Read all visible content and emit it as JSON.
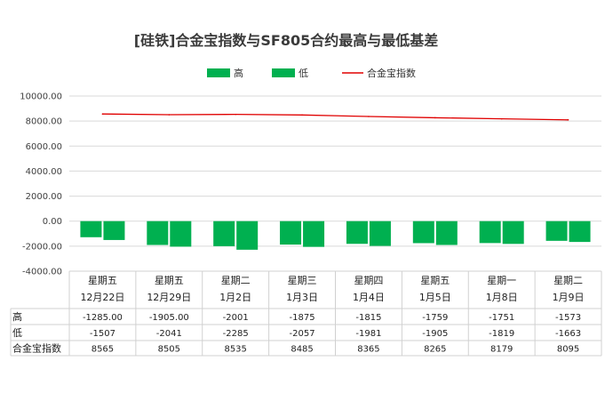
{
  "chart_data": {
    "type": "bar",
    "title": "[硅铁]合金宝指数与SF805合约最高与最低基差",
    "categories": [
      [
        "星期五",
        "12月22日"
      ],
      [
        "星期五",
        "12月29日"
      ],
      [
        "星期二",
        "1月2日"
      ],
      [
        "星期三",
        "1月3日"
      ],
      [
        "星期四",
        "1月4日"
      ],
      [
        "星期五",
        "1月5日"
      ],
      [
        "星期一",
        "1月8日"
      ],
      [
        "星期二",
        "1月9日"
      ]
    ],
    "series": [
      {
        "name": "高",
        "type": "bar",
        "color": "#00b050",
        "values": [
          -1285,
          -1905,
          -2001,
          -1875,
          -1815,
          -1759,
          -1751,
          -1573
        ],
        "labels": [
          "-1285.00",
          "-1905.00",
          "-2001",
          "-1875",
          "-1815",
          "-1759",
          "-1751",
          "-1573"
        ]
      },
      {
        "name": "低",
        "type": "bar",
        "color": "#00b050",
        "values": [
          -1507,
          -2041,
          -2285,
          -2057,
          -1981,
          -1905,
          -1819,
          -1663
        ],
        "labels": [
          "-1507",
          "-2041",
          "-2285",
          "-2057",
          "-1981",
          "-1905",
          "-1819",
          "-1663"
        ]
      },
      {
        "name": "合金宝指数",
        "type": "line",
        "color": "#e00000",
        "values": [
          8565,
          8505,
          8535,
          8485,
          8365,
          8265,
          8179,
          8095
        ],
        "labels": [
          "8565",
          "8505",
          "8535",
          "8485",
          "8365",
          "8265",
          "8179",
          "8095"
        ]
      }
    ],
    "ylim": [
      -4000,
      10000
    ],
    "yticks": [
      "10000.00",
      "8000.00",
      "6000.00",
      "4000.00",
      "2000.00",
      "0.00",
      "-2000.00",
      "-4000.00"
    ],
    "grid": true,
    "legend_position": "top",
    "data_table": true
  }
}
